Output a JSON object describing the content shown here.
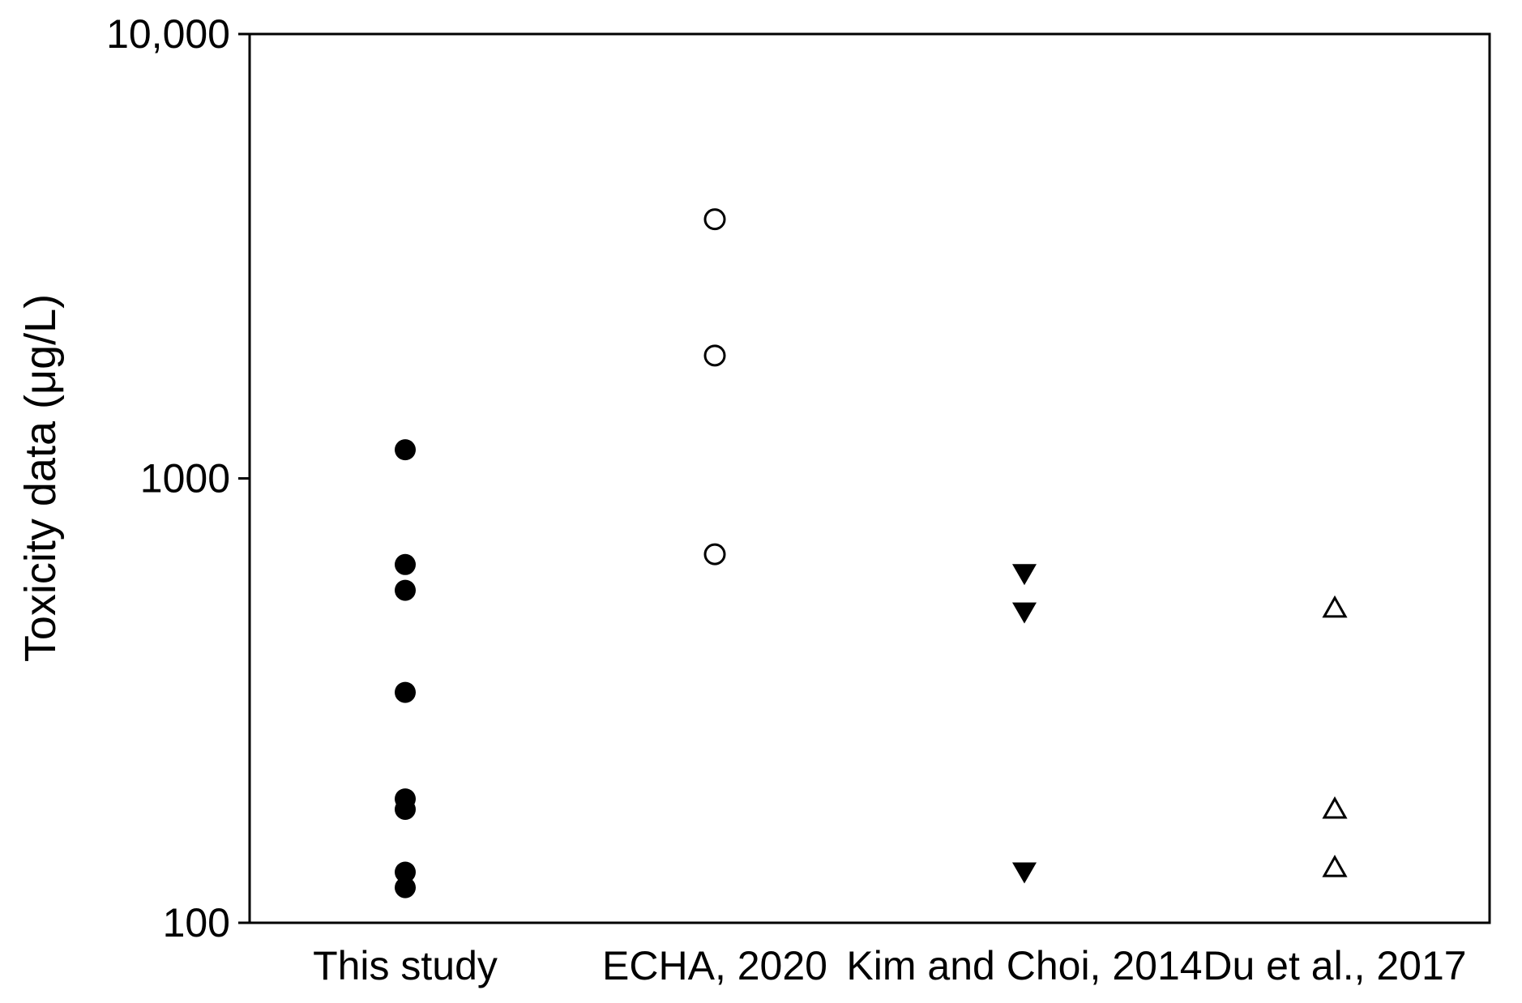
{
  "chart_data": {
    "type": "scatter",
    "title": "",
    "xlabel": "",
    "ylabel": "Toxicity data (μg/L)",
    "yscale": "log",
    "ylim": [
      100,
      10000
    ],
    "yticks": [
      {
        "value": 100,
        "label": "100"
      },
      {
        "value": 1000,
        "label": "1000"
      },
      {
        "value": 10000,
        "label": "10,000"
      }
    ],
    "categories": [
      "This study",
      "ECHA, 2020",
      "Kim and Choi, 2014",
      "Du et al., 2017"
    ],
    "grid": false,
    "legend": "none",
    "series": [
      {
        "category": "This study",
        "marker": "filled-circle",
        "color": "#000000",
        "values": [
          1160,
          640,
          560,
          330,
          190,
          180,
          130,
          120
        ]
      },
      {
        "category": "ECHA, 2020",
        "marker": "open-circle",
        "color": "#000000",
        "values": [
          3830,
          1890,
          675
        ]
      },
      {
        "category": "Kim and Choi, 2014",
        "marker": "filled-triangle-down",
        "color": "#000000",
        "values": [
          610,
          500,
          130
        ]
      },
      {
        "category": "Du et al., 2017",
        "marker": "open-triangle-up",
        "color": "#000000",
        "values": [
          510,
          180,
          133
        ]
      }
    ]
  }
}
